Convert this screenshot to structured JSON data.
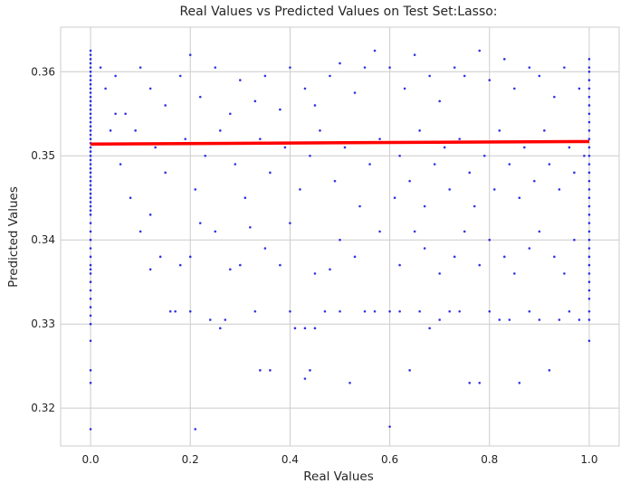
{
  "chart_data": {
    "type": "scatter",
    "title": "Real Values vs Predicted Values on Test Set:Lasso:",
    "xlabel": "Real Values",
    "ylabel": "Predicted Values",
    "xlim": [
      -0.06,
      1.06
    ],
    "ylim": [
      0.3155,
      0.3653
    ],
    "xticks": [
      0.0,
      0.2,
      0.4,
      0.6,
      0.8,
      1.0
    ],
    "xtick_labels": [
      "0.0",
      "0.2",
      "0.4",
      "0.6",
      "0.8",
      "1.0"
    ],
    "yticks": [
      0.32,
      0.33,
      0.34,
      0.35,
      0.36
    ],
    "ytick_labels": [
      "0.32",
      "0.33",
      "0.34",
      "0.35",
      "0.36"
    ],
    "grid": true,
    "legend": false,
    "colors": {
      "points": "#0000dd",
      "fit_line": "#ff0000",
      "grid": "#cccccc",
      "axes_frame": "#cccccc"
    },
    "series": [
      {
        "kind": "scatter",
        "points": [
          [
            0.0,
            0.3625
          ],
          [
            0.0,
            0.362
          ],
          [
            0.0,
            0.3615
          ],
          [
            0.0,
            0.361
          ],
          [
            0.0,
            0.3605
          ],
          [
            0.0,
            0.36
          ],
          [
            0.0,
            0.3595
          ],
          [
            0.0,
            0.359
          ],
          [
            0.0,
            0.3585
          ],
          [
            0.0,
            0.358
          ],
          [
            0.0,
            0.3575
          ],
          [
            0.0,
            0.357
          ],
          [
            0.0,
            0.3565
          ],
          [
            0.0,
            0.356
          ],
          [
            0.0,
            0.3555
          ],
          [
            0.0,
            0.355
          ],
          [
            0.0,
            0.3545
          ],
          [
            0.0,
            0.354
          ],
          [
            0.0,
            0.3535
          ],
          [
            0.0,
            0.353
          ],
          [
            0.0,
            0.3525
          ],
          [
            0.0,
            0.352
          ],
          [
            0.0,
            0.3515
          ],
          [
            0.0,
            0.351
          ],
          [
            0.0,
            0.3505
          ],
          [
            0.0,
            0.35
          ],
          [
            0.0,
            0.3495
          ],
          [
            0.0,
            0.349
          ],
          [
            0.0,
            0.3485
          ],
          [
            0.0,
            0.348
          ],
          [
            0.0,
            0.3475
          ],
          [
            0.0,
            0.347
          ],
          [
            0.0,
            0.3465
          ],
          [
            0.0,
            0.346
          ],
          [
            0.0,
            0.3455
          ],
          [
            0.0,
            0.345
          ],
          [
            0.0,
            0.3445
          ],
          [
            0.0,
            0.344
          ],
          [
            0.0,
            0.3435
          ],
          [
            0.0,
            0.343
          ],
          [
            0.0,
            0.342
          ],
          [
            0.0,
            0.341
          ],
          [
            0.0,
            0.34
          ],
          [
            0.0,
            0.339
          ],
          [
            0.0,
            0.338
          ],
          [
            0.0,
            0.337
          ],
          [
            0.0,
            0.3365
          ],
          [
            0.0,
            0.336
          ],
          [
            0.0,
            0.335
          ],
          [
            0.0,
            0.334
          ],
          [
            0.0,
            0.333
          ],
          [
            0.0,
            0.332
          ],
          [
            0.0,
            0.331
          ],
          [
            0.0,
            0.33
          ],
          [
            0.0,
            0.328
          ],
          [
            0.0,
            0.3245
          ],
          [
            0.0,
            0.323
          ],
          [
            0.0,
            0.3175
          ],
          [
            1.0,
            0.3615
          ],
          [
            1.0,
            0.3605
          ],
          [
            1.0,
            0.36
          ],
          [
            1.0,
            0.359
          ],
          [
            1.0,
            0.358
          ],
          [
            1.0,
            0.357
          ],
          [
            1.0,
            0.356
          ],
          [
            1.0,
            0.355
          ],
          [
            1.0,
            0.354
          ],
          [
            1.0,
            0.353
          ],
          [
            1.0,
            0.352
          ],
          [
            1.0,
            0.351
          ],
          [
            1.0,
            0.35
          ],
          [
            1.0,
            0.349
          ],
          [
            1.0,
            0.348
          ],
          [
            1.0,
            0.347
          ],
          [
            1.0,
            0.346
          ],
          [
            1.0,
            0.345
          ],
          [
            1.0,
            0.344
          ],
          [
            1.0,
            0.343
          ],
          [
            1.0,
            0.342
          ],
          [
            1.0,
            0.341
          ],
          [
            1.0,
            0.34
          ],
          [
            1.0,
            0.339
          ],
          [
            1.0,
            0.338
          ],
          [
            1.0,
            0.337
          ],
          [
            1.0,
            0.336
          ],
          [
            1.0,
            0.335
          ],
          [
            1.0,
            0.334
          ],
          [
            1.0,
            0.333
          ],
          [
            1.0,
            0.3315
          ],
          [
            1.0,
            0.3305
          ],
          [
            1.0,
            0.328
          ],
          [
            0.02,
            0.3605
          ],
          [
            0.03,
            0.358
          ],
          [
            0.05,
            0.3595
          ],
          [
            0.07,
            0.355
          ],
          [
            0.1,
            0.3605
          ],
          [
            0.12,
            0.358
          ],
          [
            0.15,
            0.356
          ],
          [
            0.18,
            0.3595
          ],
          [
            0.2,
            0.362
          ],
          [
            0.22,
            0.357
          ],
          [
            0.25,
            0.3605
          ],
          [
            0.28,
            0.355
          ],
          [
            0.3,
            0.359
          ],
          [
            0.33,
            0.3565
          ],
          [
            0.35,
            0.3595
          ],
          [
            0.38,
            0.3555
          ],
          [
            0.4,
            0.3605
          ],
          [
            0.43,
            0.358
          ],
          [
            0.45,
            0.356
          ],
          [
            0.48,
            0.3595
          ],
          [
            0.5,
            0.361
          ],
          [
            0.53,
            0.3575
          ],
          [
            0.55,
            0.3605
          ],
          [
            0.57,
            0.3625
          ],
          [
            0.6,
            0.3605
          ],
          [
            0.63,
            0.358
          ],
          [
            0.65,
            0.362
          ],
          [
            0.68,
            0.3595
          ],
          [
            0.7,
            0.3565
          ],
          [
            0.73,
            0.3605
          ],
          [
            0.75,
            0.3595
          ],
          [
            0.78,
            0.3625
          ],
          [
            0.8,
            0.359
          ],
          [
            0.83,
            0.3615
          ],
          [
            0.85,
            0.358
          ],
          [
            0.88,
            0.3605
          ],
          [
            0.9,
            0.3595
          ],
          [
            0.93,
            0.357
          ],
          [
            0.95,
            0.3605
          ],
          [
            0.98,
            0.358
          ],
          [
            0.04,
            0.353
          ],
          [
            0.06,
            0.349
          ],
          [
            0.08,
            0.345
          ],
          [
            0.1,
            0.341
          ],
          [
            0.12,
            0.3365
          ],
          [
            0.14,
            0.338
          ],
          [
            0.16,
            0.3315
          ],
          [
            0.17,
            0.3315
          ],
          [
            0.18,
            0.337
          ],
          [
            0.2,
            0.3315
          ],
          [
            0.21,
            0.3175
          ],
          [
            0.22,
            0.342
          ],
          [
            0.24,
            0.3305
          ],
          [
            0.26,
            0.3295
          ],
          [
            0.27,
            0.3305
          ],
          [
            0.28,
            0.3365
          ],
          [
            0.3,
            0.337
          ],
          [
            0.32,
            0.3415
          ],
          [
            0.33,
            0.3315
          ],
          [
            0.34,
            0.3245
          ],
          [
            0.36,
            0.3245
          ],
          [
            0.38,
            0.337
          ],
          [
            0.4,
            0.3315
          ],
          [
            0.41,
            0.3295
          ],
          [
            0.43,
            0.3295
          ],
          [
            0.43,
            0.3235
          ],
          [
            0.44,
            0.3245
          ],
          [
            0.45,
            0.3295
          ],
          [
            0.47,
            0.3315
          ],
          [
            0.48,
            0.3365
          ],
          [
            0.5,
            0.3315
          ],
          [
            0.52,
            0.323
          ],
          [
            0.55,
            0.3315
          ],
          [
            0.57,
            0.3315
          ],
          [
            0.6,
            0.3315
          ],
          [
            0.6,
            0.3178
          ],
          [
            0.62,
            0.3315
          ],
          [
            0.64,
            0.3245
          ],
          [
            0.66,
            0.3315
          ],
          [
            0.68,
            0.3295
          ],
          [
            0.7,
            0.3305
          ],
          [
            0.72,
            0.3315
          ],
          [
            0.74,
            0.3315
          ],
          [
            0.76,
            0.323
          ],
          [
            0.78,
            0.323
          ],
          [
            0.8,
            0.3315
          ],
          [
            0.82,
            0.3305
          ],
          [
            0.84,
            0.3305
          ],
          [
            0.86,
            0.323
          ],
          [
            0.88,
            0.3315
          ],
          [
            0.9,
            0.3305
          ],
          [
            0.92,
            0.3245
          ],
          [
            0.94,
            0.3305
          ],
          [
            0.96,
            0.3315
          ],
          [
            0.98,
            0.3305
          ],
          [
            0.05,
            0.355
          ],
          [
            0.09,
            0.353
          ],
          [
            0.13,
            0.351
          ],
          [
            0.15,
            0.348
          ],
          [
            0.19,
            0.352
          ],
          [
            0.21,
            0.346
          ],
          [
            0.23,
            0.35
          ],
          [
            0.26,
            0.353
          ],
          [
            0.29,
            0.349
          ],
          [
            0.31,
            0.345
          ],
          [
            0.34,
            0.352
          ],
          [
            0.36,
            0.348
          ],
          [
            0.39,
            0.351
          ],
          [
            0.42,
            0.346
          ],
          [
            0.44,
            0.35
          ],
          [
            0.46,
            0.353
          ],
          [
            0.49,
            0.347
          ],
          [
            0.51,
            0.351
          ],
          [
            0.54,
            0.344
          ],
          [
            0.56,
            0.349
          ],
          [
            0.58,
            0.352
          ],
          [
            0.61,
            0.345
          ],
          [
            0.62,
            0.35
          ],
          [
            0.64,
            0.347
          ],
          [
            0.66,
            0.353
          ],
          [
            0.67,
            0.344
          ],
          [
            0.69,
            0.349
          ],
          [
            0.71,
            0.351
          ],
          [
            0.72,
            0.346
          ],
          [
            0.74,
            0.352
          ],
          [
            0.76,
            0.348
          ],
          [
            0.77,
            0.344
          ],
          [
            0.79,
            0.35
          ],
          [
            0.81,
            0.346
          ],
          [
            0.82,
            0.353
          ],
          [
            0.84,
            0.349
          ],
          [
            0.86,
            0.345
          ],
          [
            0.87,
            0.351
          ],
          [
            0.89,
            0.347
          ],
          [
            0.91,
            0.353
          ],
          [
            0.92,
            0.349
          ],
          [
            0.94,
            0.346
          ],
          [
            0.96,
            0.351
          ],
          [
            0.97,
            0.348
          ],
          [
            0.99,
            0.35
          ],
          [
            0.12,
            0.343
          ],
          [
            0.2,
            0.338
          ],
          [
            0.25,
            0.341
          ],
          [
            0.35,
            0.339
          ],
          [
            0.4,
            0.342
          ],
          [
            0.45,
            0.336
          ],
          [
            0.5,
            0.34
          ],
          [
            0.53,
            0.338
          ],
          [
            0.58,
            0.341
          ],
          [
            0.62,
            0.337
          ],
          [
            0.65,
            0.341
          ],
          [
            0.67,
            0.339
          ],
          [
            0.7,
            0.336
          ],
          [
            0.73,
            0.338
          ],
          [
            0.75,
            0.341
          ],
          [
            0.78,
            0.337
          ],
          [
            0.8,
            0.34
          ],
          [
            0.83,
            0.338
          ],
          [
            0.85,
            0.336
          ],
          [
            0.88,
            0.339
          ],
          [
            0.9,
            0.341
          ],
          [
            0.93,
            0.338
          ],
          [
            0.95,
            0.336
          ],
          [
            0.97,
            0.34
          ]
        ]
      },
      {
        "kind": "line",
        "name": "",
        "x": [
          0.0,
          1.0
        ],
        "y": [
          0.3514,
          0.3517
        ]
      }
    ]
  }
}
